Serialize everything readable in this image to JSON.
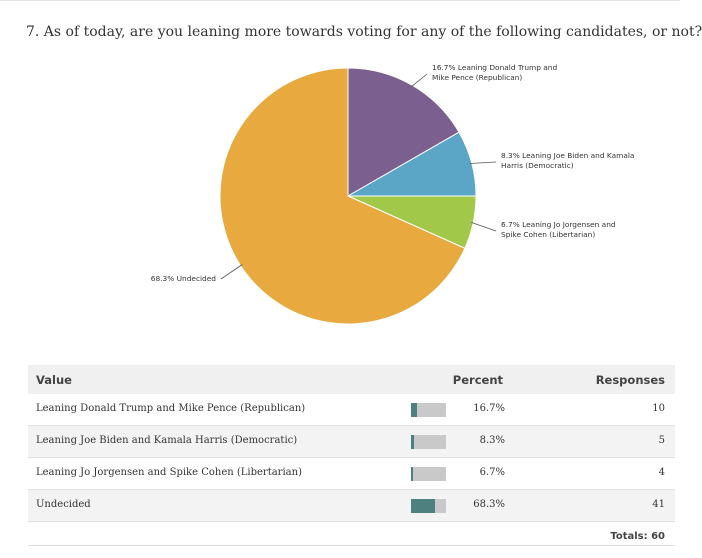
{
  "question": "7. As of today, are you leaning more towards voting for any of the following candidates, or not?",
  "chart_data": {
    "type": "pie",
    "title": "7. As of today, are you leaning more towards voting for any of the following candidates, or not?",
    "slices": [
      {
        "label": "Leaning Donald Trump and Mike Pence (Republican)",
        "value": 16.7,
        "text": "16.7% Leaning Donald Trump and Mike Pence (Republican)",
        "lines": [
          "16.7% Leaning Donald Trump and",
          "Mike Pence (Republican)"
        ],
        "color": "#7b5f8e"
      },
      {
        "label": "Leaning Joe Biden and Kamala Harris (Democratic)",
        "value": 8.3,
        "text": "8.3% Leaning Joe Biden and Kamala Harris (Democratic)",
        "lines": [
          "8.3% Leaning Joe Biden and Kamala",
          "Harris (Democratic)"
        ],
        "color": "#5ba5c7"
      },
      {
        "label": "Leaning Jo Jorgensen and Spike Cohen (Libertarian)",
        "value": 6.7,
        "text": "6.7% Leaning Jo Jorgensen and Spike Cohen (Libertarian)",
        "lines": [
          "6.7% Leaning Jo Jorgensen and",
          "Spike Cohen (Libertarian)"
        ],
        "color": "#a2c84a"
      },
      {
        "label": "Undecided",
        "value": 68.3,
        "text": "68.3% Undecided",
        "lines": [
          "68.3% Undecided"
        ],
        "color": "#e8a93e"
      }
    ]
  },
  "table": {
    "headers": {
      "value": "Value",
      "percent": "Percent",
      "responses": "Responses"
    },
    "rows": [
      {
        "value": "Leaning Donald Trump and Mike Pence (Republican)",
        "percent": "16.7%",
        "pct_num": 16.7,
        "responses": "10"
      },
      {
        "value": "Leaning Joe Biden and Kamala Harris (Democratic)",
        "percent": "8.3%",
        "pct_num": 8.3,
        "responses": "5"
      },
      {
        "value": "Leaning Jo Jorgensen and Spike Cohen (Libertarian)",
        "percent": "6.7%",
        "pct_num": 6.7,
        "responses": "4"
      },
      {
        "value": "Undecided",
        "percent": "68.3%",
        "pct_num": 68.3,
        "responses": "41"
      }
    ],
    "totals": "Totals: 60"
  },
  "colors": {
    "bar_fill": "#4e8080",
    "bar_bg": "#c9c9c9"
  }
}
